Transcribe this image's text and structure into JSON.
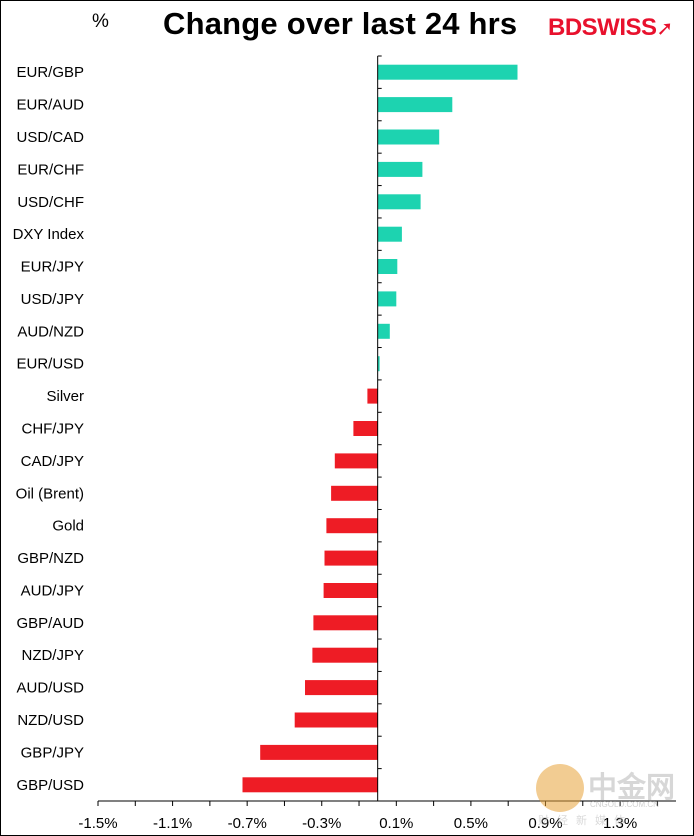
{
  "header": {
    "unit": "%",
    "title": "Change over last 24 hrs",
    "logo_text": "BDSWISS",
    "logo_icon": "arrow-icon"
  },
  "colors": {
    "positive": "#1dd3b0",
    "negative": "#ee1c25",
    "axis": "#000000",
    "logo": "#e8112d"
  },
  "watermark": {
    "name": "中金网",
    "url": "CNGOLD.COM.CN",
    "subtitle": "财经新媒体"
  },
  "chart_data": {
    "type": "bar",
    "orientation": "horizontal",
    "title": "Change over last 24 hrs",
    "ylabel": "%",
    "xlim": [
      -1.5,
      1.6
    ],
    "ticks": [
      -1.5,
      -1.1,
      -0.7,
      -0.3,
      0.1,
      0.5,
      0.9,
      1.3
    ],
    "tick_labels": [
      "-1.5%",
      "-1.1%",
      "-0.7%",
      "-0.3%",
      "0.1%",
      "0.5%",
      "0.9%",
      "1.3%"
    ],
    "categories": [
      "EUR/GBP",
      "EUR/AUD",
      "USD/CAD",
      "EUR/CHF",
      "USD/CHF",
      "DXY Index",
      "EUR/JPY",
      "USD/JPY",
      "AUD/NZD",
      "EUR/USD",
      "Silver",
      "CHF/JPY",
      "CAD/JPY",
      "Oil (Brent)",
      "Gold",
      "GBP/NZD",
      "AUD/JPY",
      "GBP/AUD",
      "NZD/JPY",
      "AUD/USD",
      "NZD/USD",
      "GBP/JPY",
      "GBP/USD"
    ],
    "values": [
      0.75,
      0.4,
      0.33,
      0.24,
      0.23,
      0.13,
      0.105,
      0.1,
      0.065,
      0.01,
      -0.055,
      -0.13,
      -0.23,
      -0.25,
      -0.275,
      -0.285,
      -0.29,
      -0.345,
      -0.35,
      -0.39,
      -0.445,
      -0.63,
      -0.725
    ],
    "grid": false,
    "legend": "none"
  }
}
